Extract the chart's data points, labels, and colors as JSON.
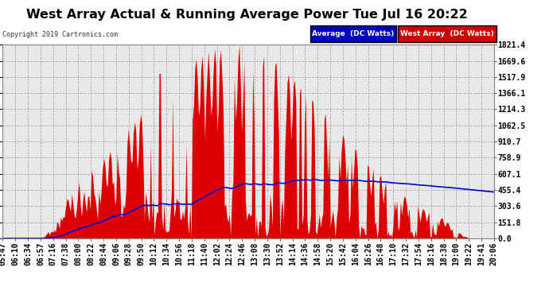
{
  "title": "West Array Actual & Running Average Power Tue Jul 16 20:22",
  "copyright": "Copyright 2019 Cartronics.com",
  "legend_labels": [
    "Average  (DC Watts)",
    "West Array  (DC Watts)"
  ],
  "legend_colors": [
    "#0000bb",
    "#cc0000"
  ],
  "ylim": [
    0.0,
    1821.4
  ],
  "yticks": [
    0.0,
    151.8,
    303.6,
    455.4,
    607.1,
    758.9,
    910.7,
    1062.5,
    1214.3,
    1366.1,
    1517.9,
    1669.6,
    1821.4
  ],
  "background_color": "#ffffff",
  "plot_bg_color": "#e8e8e8",
  "grid_color": "#aaaaaa",
  "title_fontsize": 11.5,
  "tick_fontsize": 7,
  "x_tick_labels": [
    "05:47",
    "06:10",
    "06:34",
    "06:57",
    "07:16",
    "07:38",
    "08:00",
    "08:22",
    "08:44",
    "09:06",
    "09:28",
    "09:50",
    "10:12",
    "10:34",
    "10:56",
    "11:18",
    "11:40",
    "12:02",
    "12:24",
    "12:46",
    "13:08",
    "13:30",
    "13:52",
    "14:14",
    "14:36",
    "14:58",
    "15:20",
    "15:42",
    "16:04",
    "16:26",
    "16:48",
    "17:10",
    "17:32",
    "17:54",
    "18:16",
    "18:38",
    "19:00",
    "19:22",
    "19:41",
    "20:06"
  ],
  "bar_color": "#dd0000",
  "line_color": "#0000cc",
  "line_width": 1.2
}
